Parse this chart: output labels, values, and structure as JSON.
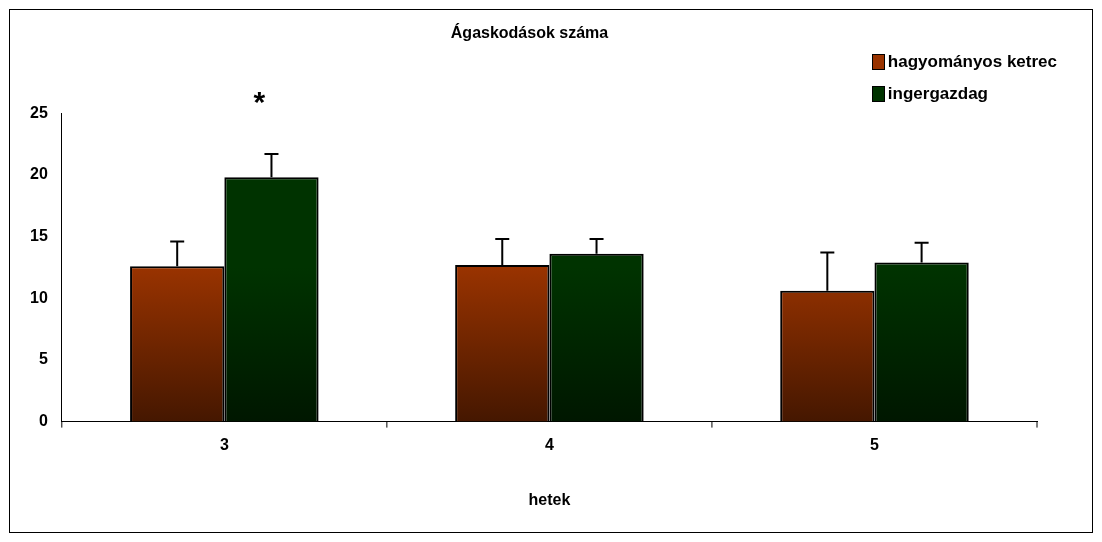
{
  "chart_data": {
    "type": "bar",
    "title": "Ágaskodások száma",
    "xlabel": "hetek",
    "categories": [
      "3",
      "4",
      "5"
    ],
    "series": [
      {
        "name": "hagyományos ketrec",
        "color": "#993300",
        "values": [
          12.6,
          12.7,
          10.6
        ],
        "errors": [
          [
            12.6,
            14.6
          ],
          [
            12.7,
            14.8
          ],
          [
            10.6,
            13.7
          ]
        ]
      },
      {
        "name": "ingergazdag",
        "color": "#003300",
        "values": [
          19.8,
          13.6,
          12.9
        ],
        "errors": [
          [
            19.8,
            21.7
          ],
          [
            13.6,
            14.8
          ],
          [
            12.9,
            14.5
          ]
        ]
      }
    ],
    "ylim": [
      0,
      25
    ],
    "yticks": [
      0,
      5,
      10,
      15,
      20,
      25
    ],
    "grid": false,
    "legend": "top right",
    "annotations": [
      "*"
    ]
  }
}
